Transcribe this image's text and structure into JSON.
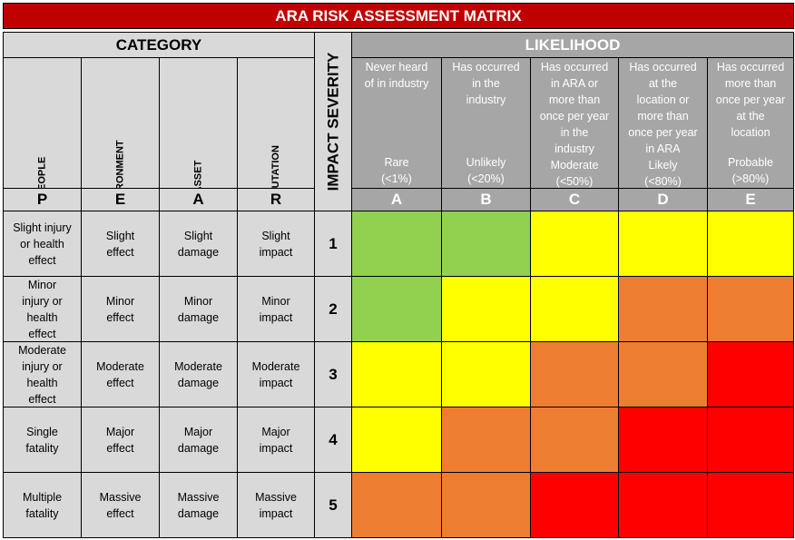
{
  "title": "ARA RISK ASSESSMENT MATRIX",
  "category_header": "CATEGORY",
  "severity_header": "IMPACT SEVERITY",
  "likelihood_header": "LIKELIHOOD",
  "categories": [
    {
      "name": "PEOPLE",
      "letter": "P"
    },
    {
      "name": "ENVIRONMENT",
      "letter": "E"
    },
    {
      "name": "ASSET",
      "letter": "A"
    },
    {
      "name": "REPUTATION",
      "letter": "R"
    }
  ],
  "likelihoods": [
    {
      "letter": "A",
      "desc": "Never heard\nof in industry",
      "level": "Rare\n(<1%)"
    },
    {
      "letter": "B",
      "desc": "Has occurred\nin the\nindustry",
      "level": "Unlikely\n(<20%)"
    },
    {
      "letter": "C",
      "desc": "Has occurred\nin ARA or\nmore than\nonce per year\nin the\nindustry",
      "level": "Moderate\n(<50%)"
    },
    {
      "letter": "D",
      "desc": "Has occurred\nat the\nlocation or\nmore than\nonce per year\nin ARA",
      "level": "Likely\n(<80%)"
    },
    {
      "letter": "E",
      "desc": "Has occurred\nmore than\nonce per year\nat the\nlocation",
      "level": "Probable\n(>80%)"
    }
  ],
  "rows": [
    {
      "severity": "1",
      "people": "Slight injury\nor health\neffect",
      "environment": "Slight\neffect",
      "asset": "Slight\ndamage",
      "reputation": "Slight\nimpact"
    },
    {
      "severity": "2",
      "people": "Minor\ninjury or\nhealth\neffect",
      "environment": "Minor\neffect",
      "asset": "Minor\ndamage",
      "reputation": "Minor\nimpact"
    },
    {
      "severity": "3",
      "people": "Moderate\ninjury or\nhealth\neffect",
      "environment": "Moderate\neffect",
      "asset": "Moderate\ndamage",
      "reputation": "Moderate\nimpact"
    },
    {
      "severity": "4",
      "people": "Single\nfatality",
      "environment": "Major\neffect",
      "asset": "Major\ndamage",
      "reputation": "Major\nimpact"
    },
    {
      "severity": "5",
      "people": "Multiple\nfatality",
      "environment": "Massive\neffect",
      "asset": "Massive\ndamage",
      "reputation": "Massive\nimpact"
    }
  ],
  "risk_colors": {
    "green": "#92d050",
    "yellow": "#ffff00",
    "orange": "#ed7d31",
    "red": "#ff0000"
  },
  "risk_matrix": [
    [
      "green",
      "green",
      "yellow",
      "yellow",
      "yellow"
    ],
    [
      "green",
      "yellow",
      "yellow",
      "orange",
      "orange"
    ],
    [
      "yellow",
      "yellow",
      "orange",
      "orange",
      "red"
    ],
    [
      "yellow",
      "orange",
      "orange",
      "red",
      "red"
    ],
    [
      "orange",
      "orange",
      "red",
      "red",
      "red"
    ]
  ]
}
